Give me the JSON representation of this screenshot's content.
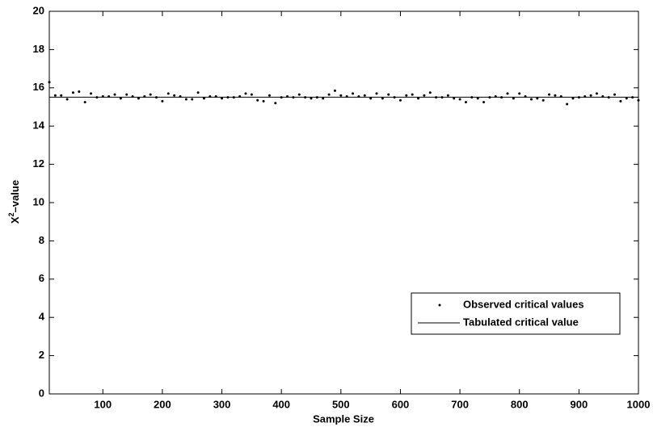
{
  "chart_data": {
    "type": "scatter",
    "xlabel": "Sample Size",
    "ylabel": {
      "base": "X",
      "sup": "2",
      "rest": "–value"
    },
    "x": [
      10,
      20,
      30,
      40,
      50,
      60,
      70,
      80,
      90,
      100,
      110,
      120,
      130,
      140,
      150,
      160,
      170,
      180,
      190,
      200,
      210,
      220,
      230,
      240,
      250,
      260,
      270,
      280,
      290,
      300,
      310,
      320,
      330,
      340,
      350,
      360,
      370,
      380,
      390,
      400,
      410,
      420,
      430,
      440,
      450,
      460,
      470,
      480,
      490,
      500,
      510,
      520,
      530,
      540,
      550,
      560,
      570,
      580,
      590,
      600,
      610,
      620,
      630,
      640,
      650,
      660,
      670,
      680,
      690,
      700,
      710,
      720,
      730,
      740,
      750,
      760,
      770,
      780,
      790,
      800,
      810,
      820,
      830,
      840,
      850,
      860,
      870,
      880,
      890,
      900,
      910,
      920,
      930,
      940,
      950,
      960,
      970,
      980,
      990,
      1000
    ],
    "series": [
      {
        "name": "Observed critical values",
        "color": "#000000",
        "values": [
          16.3,
          15.6,
          15.6,
          15.4,
          15.75,
          15.8,
          15.25,
          15.7,
          15.5,
          15.55,
          15.55,
          15.65,
          15.45,
          15.65,
          15.55,
          15.45,
          15.55,
          15.65,
          15.5,
          15.3,
          15.7,
          15.6,
          15.55,
          15.4,
          15.4,
          15.75,
          15.45,
          15.55,
          15.55,
          15.45,
          15.5,
          15.5,
          15.55,
          15.7,
          15.65,
          15.35,
          15.3,
          15.6,
          15.2,
          15.5,
          15.55,
          15.5,
          15.65,
          15.5,
          15.45,
          15.5,
          15.45,
          15.65,
          15.85,
          15.6,
          15.55,
          15.7,
          15.55,
          15.6,
          15.45,
          15.7,
          15.45,
          15.65,
          15.5,
          15.35,
          15.6,
          15.65,
          15.45,
          15.6,
          15.75,
          15.5,
          15.5,
          15.6,
          15.45,
          15.4,
          15.25,
          15.5,
          15.45,
          15.25,
          15.5,
          15.55,
          15.5,
          15.7,
          15.45,
          15.7,
          15.55,
          15.4,
          15.45,
          15.35,
          15.65,
          15.6,
          15.55,
          15.15,
          15.45,
          15.5,
          15.55,
          15.6,
          15.7,
          15.55,
          15.5,
          15.65,
          15.3,
          15.45,
          15.5,
          15.35
        ]
      }
    ],
    "reference": {
      "name": "Tabulated critical value",
      "value": 15.51,
      "color": "#000000"
    },
    "xlim": [
      10,
      1000
    ],
    "xticks": [
      100,
      200,
      300,
      400,
      500,
      600,
      700,
      800,
      900,
      1000
    ],
    "ylim": [
      0,
      20
    ],
    "yticks": [
      0,
      2,
      4,
      6,
      8,
      10,
      12,
      14,
      16,
      18,
      20
    ],
    "grid": false,
    "legend": "lower right"
  }
}
